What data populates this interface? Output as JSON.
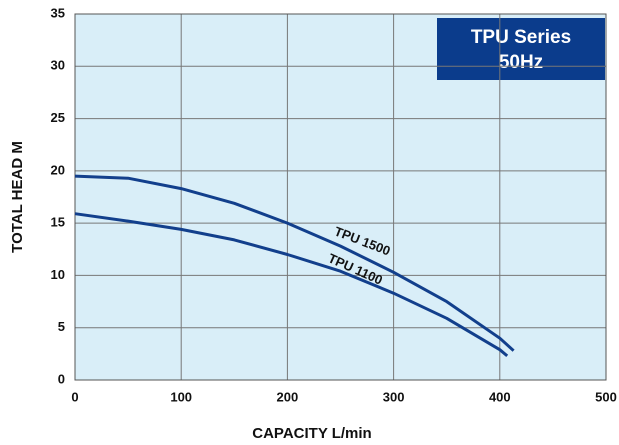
{
  "chart_data": {
    "type": "line",
    "title": [
      "TPU Series",
      "50Hz"
    ],
    "x_label": "CAPACITY L/min",
    "y_label": "TOTAL HEAD M",
    "xlim": [
      0,
      500
    ],
    "ylim": [
      0,
      35
    ],
    "xticks": [
      0,
      100,
      200,
      300,
      400,
      500
    ],
    "yticks": [
      0,
      5,
      10,
      15,
      20,
      25,
      30,
      35
    ],
    "grid": true,
    "series": [
      {
        "name": "TPU 1500",
        "color": "#123f8c",
        "x": [
          0,
          50,
          100,
          150,
          200,
          250,
          300,
          350,
          400,
          413
        ],
        "values": [
          19.5,
          19.3,
          18.3,
          16.9,
          15.0,
          12.8,
          10.3,
          7.5,
          4.0,
          2.8
        ]
      },
      {
        "name": "TPU 1100",
        "color": "#123f8c",
        "x": [
          0,
          50,
          100,
          150,
          200,
          250,
          300,
          350,
          400,
          407
        ],
        "values": [
          15.9,
          15.2,
          14.4,
          13.4,
          12.0,
          10.4,
          8.3,
          5.9,
          2.9,
          2.3
        ]
      }
    ]
  }
}
